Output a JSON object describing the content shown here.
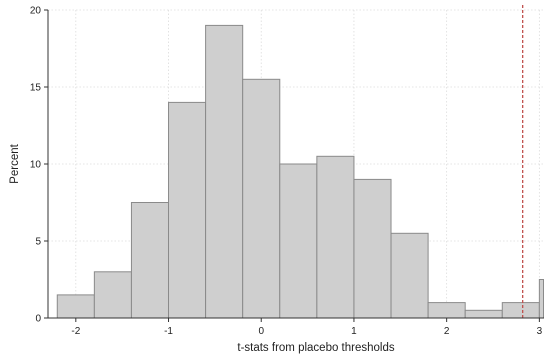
{
  "chart_data": {
    "type": "bar",
    "subtype": "histogram",
    "xlabel": "t-stats from placebo thresholds",
    "ylabel": "Percent",
    "xlim": [
      -2.3,
      3.05
    ],
    "ylim": [
      0,
      20
    ],
    "x_ticks": [
      -2,
      -1,
      0,
      1,
      2,
      3
    ],
    "y_ticks": [
      0,
      5,
      10,
      15,
      20
    ],
    "bin_width": 0.4,
    "bins": [
      {
        "start": -2.2,
        "end": -1.8,
        "value": 1.5
      },
      {
        "start": -1.8,
        "end": -1.4,
        "value": 3.0
      },
      {
        "start": -1.4,
        "end": -1.0,
        "value": 7.5
      },
      {
        "start": -1.0,
        "end": -0.6,
        "value": 14.0
      },
      {
        "start": -0.6,
        "end": -0.2,
        "value": 19.0
      },
      {
        "start": -0.2,
        "end": 0.2,
        "value": 15.5
      },
      {
        "start": 0.2,
        "end": 0.6,
        "value": 10.0
      },
      {
        "start": 0.6,
        "end": 1.0,
        "value": 10.5
      },
      {
        "start": 1.0,
        "end": 1.4,
        "value": 9.0
      },
      {
        "start": 1.4,
        "end": 1.8,
        "value": 5.5
      },
      {
        "start": 1.8,
        "end": 2.2,
        "value": 1.0
      },
      {
        "start": 2.2,
        "end": 2.6,
        "value": 0.5
      },
      {
        "start": 2.6,
        "end": 3.0,
        "value": 1.0
      },
      {
        "start": 3.0,
        "end": 3.4,
        "value": 2.5
      }
    ],
    "reference_line": {
      "x": 2.82,
      "style": "dashed",
      "color": "#c0504d"
    },
    "grid": true,
    "legend": "none",
    "colors": {
      "bar_fill": "#cfcfcf",
      "bar_edge": "#8a8a8a",
      "grid": "#dcdcdc"
    }
  }
}
